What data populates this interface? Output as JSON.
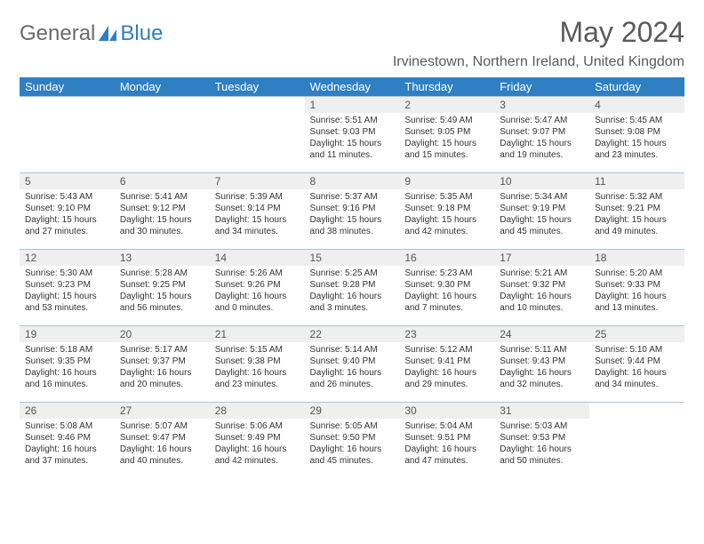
{
  "logo": {
    "text1": "General",
    "text2": "Blue"
  },
  "title": "May 2024",
  "location": "Irvinestown, Northern Ireland, United Kingdom",
  "colors": {
    "header_bg": "#2f7fc2",
    "header_fg": "#ffffff",
    "daynum_bg": "#efefef",
    "border": "#a9c4d6",
    "logo_gray": "#6a6a6a",
    "logo_blue": "#2f7fc2"
  },
  "daysOfWeek": [
    "Sunday",
    "Monday",
    "Tuesday",
    "Wednesday",
    "Thursday",
    "Friday",
    "Saturday"
  ],
  "weeks": [
    [
      null,
      null,
      null,
      {
        "n": "1",
        "sr": "5:51 AM",
        "ss": "9:03 PM",
        "dl": "15 hours and 11 minutes."
      },
      {
        "n": "2",
        "sr": "5:49 AM",
        "ss": "9:05 PM",
        "dl": "15 hours and 15 minutes."
      },
      {
        "n": "3",
        "sr": "5:47 AM",
        "ss": "9:07 PM",
        "dl": "15 hours and 19 minutes."
      },
      {
        "n": "4",
        "sr": "5:45 AM",
        "ss": "9:08 PM",
        "dl": "15 hours and 23 minutes."
      }
    ],
    [
      {
        "n": "5",
        "sr": "5:43 AM",
        "ss": "9:10 PM",
        "dl": "15 hours and 27 minutes."
      },
      {
        "n": "6",
        "sr": "5:41 AM",
        "ss": "9:12 PM",
        "dl": "15 hours and 30 minutes."
      },
      {
        "n": "7",
        "sr": "5:39 AM",
        "ss": "9:14 PM",
        "dl": "15 hours and 34 minutes."
      },
      {
        "n": "8",
        "sr": "5:37 AM",
        "ss": "9:16 PM",
        "dl": "15 hours and 38 minutes."
      },
      {
        "n": "9",
        "sr": "5:35 AM",
        "ss": "9:18 PM",
        "dl": "15 hours and 42 minutes."
      },
      {
        "n": "10",
        "sr": "5:34 AM",
        "ss": "9:19 PM",
        "dl": "15 hours and 45 minutes."
      },
      {
        "n": "11",
        "sr": "5:32 AM",
        "ss": "9:21 PM",
        "dl": "15 hours and 49 minutes."
      }
    ],
    [
      {
        "n": "12",
        "sr": "5:30 AM",
        "ss": "9:23 PM",
        "dl": "15 hours and 53 minutes."
      },
      {
        "n": "13",
        "sr": "5:28 AM",
        "ss": "9:25 PM",
        "dl": "15 hours and 56 minutes."
      },
      {
        "n": "14",
        "sr": "5:26 AM",
        "ss": "9:26 PM",
        "dl": "16 hours and 0 minutes."
      },
      {
        "n": "15",
        "sr": "5:25 AM",
        "ss": "9:28 PM",
        "dl": "16 hours and 3 minutes."
      },
      {
        "n": "16",
        "sr": "5:23 AM",
        "ss": "9:30 PM",
        "dl": "16 hours and 7 minutes."
      },
      {
        "n": "17",
        "sr": "5:21 AM",
        "ss": "9:32 PM",
        "dl": "16 hours and 10 minutes."
      },
      {
        "n": "18",
        "sr": "5:20 AM",
        "ss": "9:33 PM",
        "dl": "16 hours and 13 minutes."
      }
    ],
    [
      {
        "n": "19",
        "sr": "5:18 AM",
        "ss": "9:35 PM",
        "dl": "16 hours and 16 minutes."
      },
      {
        "n": "20",
        "sr": "5:17 AM",
        "ss": "9:37 PM",
        "dl": "16 hours and 20 minutes."
      },
      {
        "n": "21",
        "sr": "5:15 AM",
        "ss": "9:38 PM",
        "dl": "16 hours and 23 minutes."
      },
      {
        "n": "22",
        "sr": "5:14 AM",
        "ss": "9:40 PM",
        "dl": "16 hours and 26 minutes."
      },
      {
        "n": "23",
        "sr": "5:12 AM",
        "ss": "9:41 PM",
        "dl": "16 hours and 29 minutes."
      },
      {
        "n": "24",
        "sr": "5:11 AM",
        "ss": "9:43 PM",
        "dl": "16 hours and 32 minutes."
      },
      {
        "n": "25",
        "sr": "5:10 AM",
        "ss": "9:44 PM",
        "dl": "16 hours and 34 minutes."
      }
    ],
    [
      {
        "n": "26",
        "sr": "5:08 AM",
        "ss": "9:46 PM",
        "dl": "16 hours and 37 minutes."
      },
      {
        "n": "27",
        "sr": "5:07 AM",
        "ss": "9:47 PM",
        "dl": "16 hours and 40 minutes."
      },
      {
        "n": "28",
        "sr": "5:06 AM",
        "ss": "9:49 PM",
        "dl": "16 hours and 42 minutes."
      },
      {
        "n": "29",
        "sr": "5:05 AM",
        "ss": "9:50 PM",
        "dl": "16 hours and 45 minutes."
      },
      {
        "n": "30",
        "sr": "5:04 AM",
        "ss": "9:51 PM",
        "dl": "16 hours and 47 minutes."
      },
      {
        "n": "31",
        "sr": "5:03 AM",
        "ss": "9:53 PM",
        "dl": "16 hours and 50 minutes."
      },
      null
    ]
  ],
  "labels": {
    "sunrise": "Sunrise:",
    "sunset": "Sunset:",
    "daylight": "Daylight:"
  }
}
